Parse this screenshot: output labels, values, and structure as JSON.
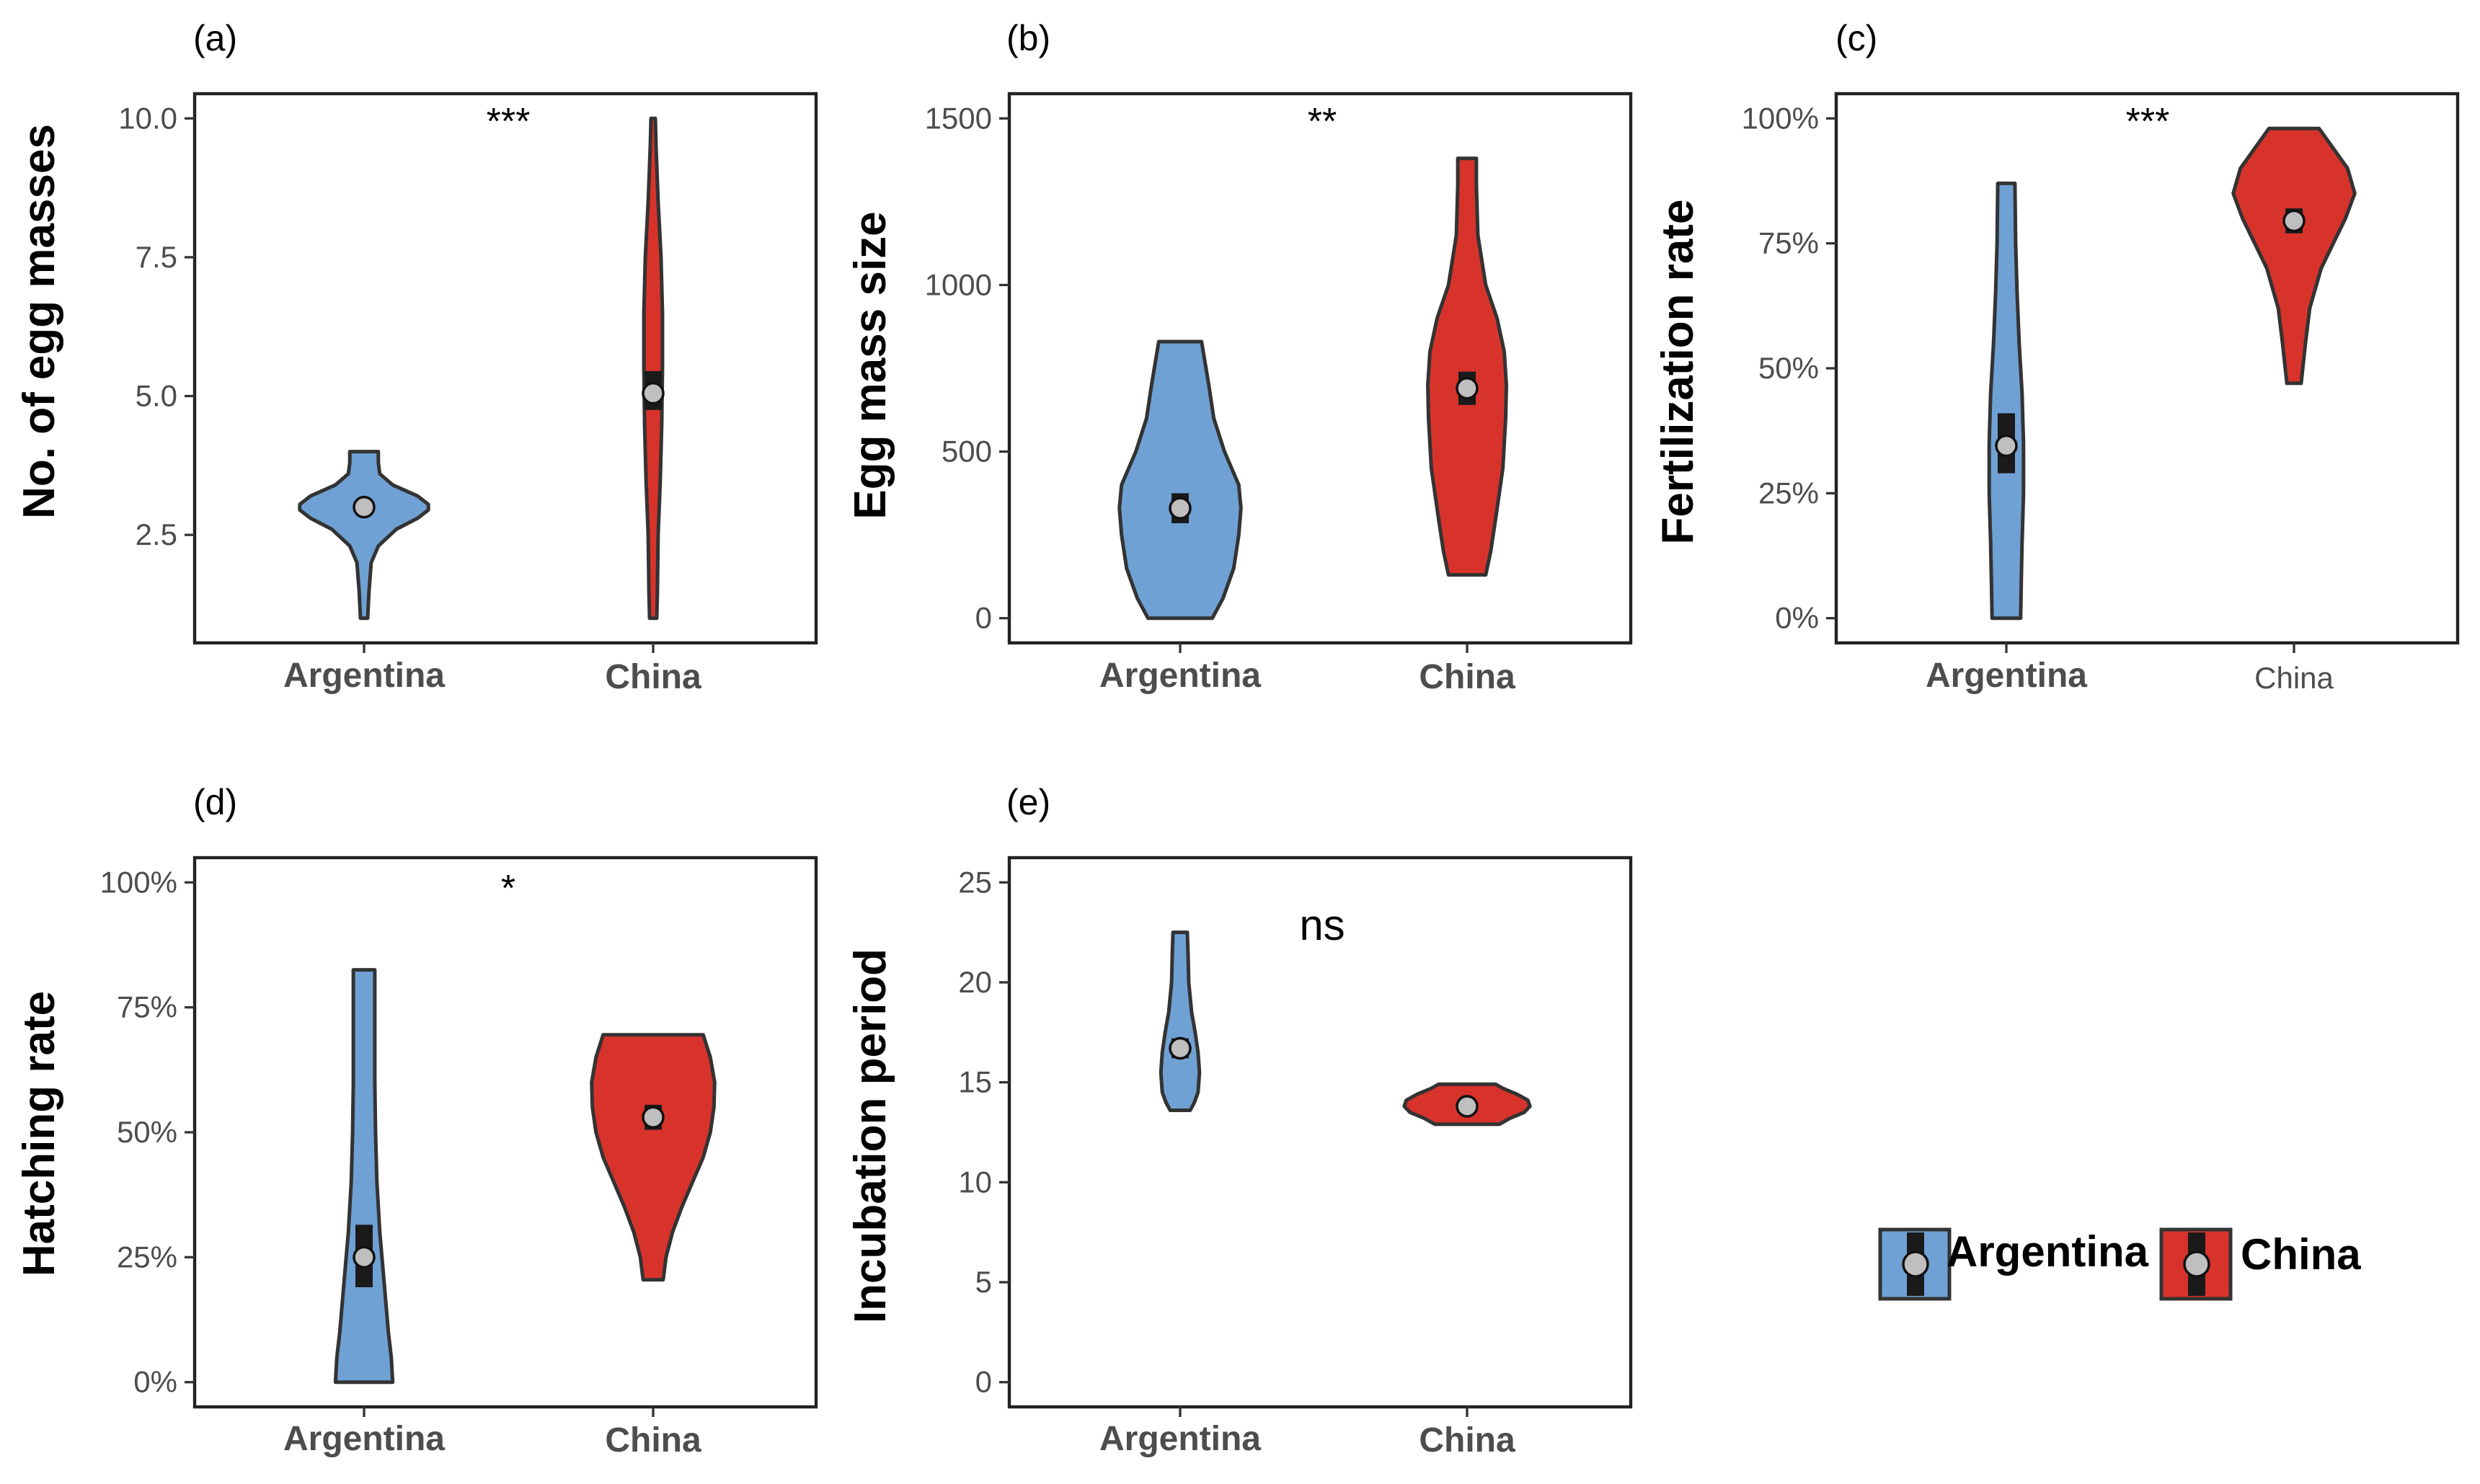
{
  "figure": {
    "legend": {
      "items": [
        {
          "label": "Argentina",
          "color": "#6fa1d4"
        },
        {
          "label": "China",
          "color": "#d8332b"
        }
      ]
    }
  },
  "chart_data": [
    {
      "panel": "(a)",
      "type": "violin",
      "ylabel": "No. of egg masses",
      "categories": [
        "Argentina",
        "China"
      ],
      "ylim": [
        1,
        10
      ],
      "yticks": [
        2.5,
        5.0,
        7.5,
        10.0
      ],
      "ytick_labels": [
        "2.5",
        "5.0",
        "7.5",
        "10.0"
      ],
      "significance": "***",
      "violins": [
        {
          "category": "Argentina",
          "color": "#6fa1d4",
          "min": 1,
          "max": 4,
          "mean": 3.0,
          "ci": [
            2.9,
            3.1
          ],
          "profile": [
            [
              1.0,
              0.05
            ],
            [
              1.5,
              0.07
            ],
            [
              2.0,
              0.1
            ],
            [
              2.3,
              0.2
            ],
            [
              2.6,
              0.45
            ],
            [
              2.8,
              0.75
            ],
            [
              2.95,
              0.9
            ],
            [
              3.05,
              0.9
            ],
            [
              3.2,
              0.75
            ],
            [
              3.4,
              0.4
            ],
            [
              3.6,
              0.22
            ],
            [
              3.8,
              0.2
            ],
            [
              4.0,
              0.2
            ]
          ]
        },
        {
          "category": "China",
          "color": "#d8332b",
          "min": 1,
          "max": 10,
          "mean": 5.05,
          "ci": [
            4.75,
            5.45
          ],
          "profile": [
            [
              1.0,
              0.05
            ],
            [
              1.5,
              0.06
            ],
            [
              2.5,
              0.07
            ],
            [
              3.5,
              0.1
            ],
            [
              4.5,
              0.12
            ],
            [
              5.5,
              0.13
            ],
            [
              6.5,
              0.13
            ],
            [
              7.5,
              0.11
            ],
            [
              8.5,
              0.07
            ],
            [
              9.5,
              0.04
            ],
            [
              10.0,
              0.03
            ]
          ]
        }
      ]
    },
    {
      "panel": "(b)",
      "type": "violin",
      "ylabel": "Egg mass size",
      "categories": [
        "Argentina",
        "China"
      ],
      "ylim": [
        0,
        1500
      ],
      "yticks": [
        0,
        500,
        1000,
        1500
      ],
      "ytick_labels": [
        "0",
        "500",
        "1000",
        "1500"
      ],
      "significance": "**",
      "violins": [
        {
          "category": "Argentina",
          "color": "#6fa1d4",
          "min": 0,
          "max": 830,
          "mean": 330,
          "ci": [
            285,
            375
          ],
          "profile": [
            [
              0,
              0.45
            ],
            [
              60,
              0.6
            ],
            [
              150,
              0.75
            ],
            [
              250,
              0.82
            ],
            [
              330,
              0.85
            ],
            [
              400,
              0.82
            ],
            [
              500,
              0.62
            ],
            [
              600,
              0.47
            ],
            [
              700,
              0.4
            ],
            [
              830,
              0.3
            ]
          ]
        },
        {
          "category": "China",
          "color": "#d8332b",
          "min": 130,
          "max": 1380,
          "mean": 690,
          "ci": [
            640,
            740
          ],
          "profile": [
            [
              130,
              0.26
            ],
            [
              200,
              0.33
            ],
            [
              300,
              0.4
            ],
            [
              450,
              0.5
            ],
            [
              600,
              0.54
            ],
            [
              700,
              0.55
            ],
            [
              800,
              0.52
            ],
            [
              900,
              0.42
            ],
            [
              1000,
              0.26
            ],
            [
              1150,
              0.15
            ],
            [
              1300,
              0.13
            ],
            [
              1380,
              0.13
            ]
          ]
        }
      ]
    },
    {
      "panel": "(c)",
      "type": "violin",
      "ylabel": "Fertilization rate",
      "categories": [
        "Argentina",
        "China"
      ],
      "ylim": [
        0,
        1
      ],
      "yticks": [
        0,
        0.25,
        0.5,
        0.75,
        1.0
      ],
      "ytick_labels": [
        "0%",
        "25%",
        "50%",
        "75%",
        "100%"
      ],
      "significance": "***",
      "violins": [
        {
          "category": "Argentina",
          "color": "#6fa1d4",
          "min": 0.0,
          "max": 0.87,
          "mean": 0.345,
          "ci": [
            0.29,
            0.41
          ],
          "profile": [
            [
              0.0,
              0.2
            ],
            [
              0.08,
              0.21
            ],
            [
              0.15,
              0.22
            ],
            [
              0.25,
              0.24
            ],
            [
              0.35,
              0.24
            ],
            [
              0.45,
              0.22
            ],
            [
              0.55,
              0.18
            ],
            [
              0.65,
              0.15
            ],
            [
              0.75,
              0.13
            ],
            [
              0.87,
              0.12
            ]
          ]
        },
        {
          "category": "China",
          "color": "#d8332b",
          "min": 0.47,
          "max": 0.98,
          "mean": 0.795,
          "ci": [
            0.77,
            0.82
          ],
          "profile": [
            [
              0.47,
              0.1
            ],
            [
              0.55,
              0.16
            ],
            [
              0.62,
              0.22
            ],
            [
              0.7,
              0.38
            ],
            [
              0.75,
              0.55
            ],
            [
              0.8,
              0.72
            ],
            [
              0.85,
              0.85
            ],
            [
              0.9,
              0.75
            ],
            [
              0.95,
              0.5
            ],
            [
              0.98,
              0.35
            ]
          ]
        }
      ]
    },
    {
      "panel": "(d)",
      "type": "violin",
      "ylabel": "Hatching rate",
      "categories": [
        "Argentina",
        "China"
      ],
      "ylim": [
        0,
        1
      ],
      "yticks": [
        0,
        0.25,
        0.5,
        0.75,
        1.0
      ],
      "ytick_labels": [
        "0%",
        "25%",
        "50%",
        "75%",
        "100%"
      ],
      "significance": "*",
      "violins": [
        {
          "category": "Argentina",
          "color": "#6fa1d4",
          "min": 0.0,
          "max": 0.825,
          "mean": 0.25,
          "ci": [
            0.19,
            0.315
          ],
          "profile": [
            [
              0.0,
              0.4
            ],
            [
              0.05,
              0.38
            ],
            [
              0.1,
              0.34
            ],
            [
              0.2,
              0.28
            ],
            [
              0.3,
              0.22
            ],
            [
              0.4,
              0.18
            ],
            [
              0.5,
              0.16
            ],
            [
              0.6,
              0.15
            ],
            [
              0.7,
              0.15
            ],
            [
              0.825,
              0.15
            ]
          ]
        },
        {
          "category": "China",
          "color": "#d8332b",
          "min": 0.205,
          "max": 0.695,
          "mean": 0.53,
          "ci": [
            0.505,
            0.555
          ],
          "profile": [
            [
              0.205,
              0.14
            ],
            [
              0.25,
              0.18
            ],
            [
              0.3,
              0.27
            ],
            [
              0.35,
              0.4
            ],
            [
              0.4,
              0.55
            ],
            [
              0.45,
              0.7
            ],
            [
              0.5,
              0.8
            ],
            [
              0.55,
              0.85
            ],
            [
              0.6,
              0.86
            ],
            [
              0.65,
              0.8
            ],
            [
              0.695,
              0.7
            ]
          ]
        }
      ]
    },
    {
      "panel": "(e)",
      "type": "violin",
      "ylabel": "Incubation period",
      "categories": [
        "Argentina",
        "China"
      ],
      "ylim": [
        0,
        25
      ],
      "yticks": [
        0,
        5,
        10,
        15,
        20,
        25
      ],
      "ytick_labels": [
        "0",
        "5",
        "10",
        "15",
        "20",
        "25"
      ],
      "significance": "ns",
      "violins": [
        {
          "category": "Argentina",
          "color": "#6fa1d4",
          "min": 13.6,
          "max": 22.5,
          "mean": 16.7,
          "ci": [
            16.2,
            17.2
          ],
          "profile": [
            [
              13.6,
              0.14
            ],
            [
              14.0,
              0.2
            ],
            [
              14.5,
              0.25
            ],
            [
              15.5,
              0.27
            ],
            [
              16.5,
              0.25
            ],
            [
              17.5,
              0.21
            ],
            [
              18.5,
              0.16
            ],
            [
              20.0,
              0.12
            ],
            [
              21.5,
              0.11
            ],
            [
              22.5,
              0.1
            ]
          ]
        },
        {
          "category": "China",
          "color": "#d8332b",
          "min": 12.9,
          "max": 14.9,
          "mean": 13.8,
          "ci": [
            13.6,
            14.0
          ],
          "profile": [
            [
              12.9,
              0.45
            ],
            [
              13.2,
              0.6
            ],
            [
              13.5,
              0.8
            ],
            [
              13.8,
              0.88
            ],
            [
              14.1,
              0.85
            ],
            [
              14.4,
              0.7
            ],
            [
              14.7,
              0.5
            ],
            [
              14.9,
              0.4
            ]
          ]
        }
      ]
    }
  ]
}
